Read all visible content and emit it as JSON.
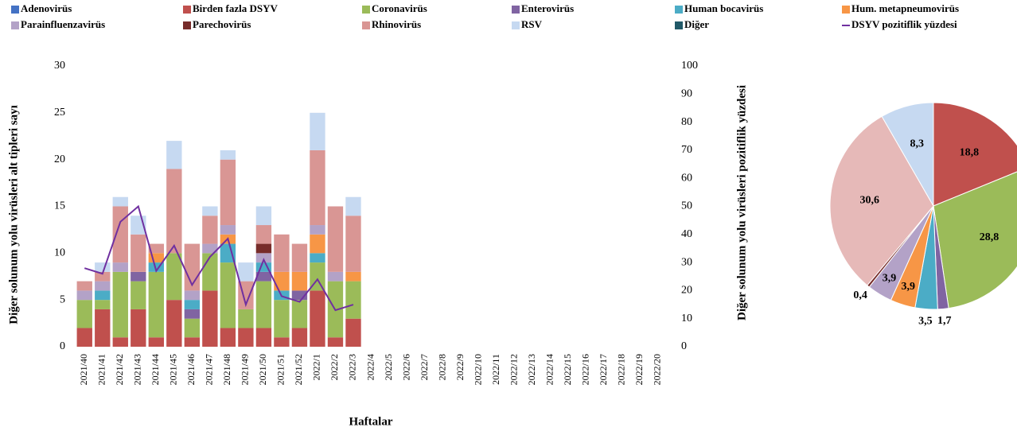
{
  "chart_data": [
    {
      "type": "bar",
      "stacked": true,
      "x_label": "Haftalar",
      "y_label": "Diğer solunum yolu virüsleri alt tipleri sayı",
      "y2_label": "Diğer solunum yolu virüsleri pozitiflik yüzdesi",
      "categories": [
        "2021/40",
        "2021/41",
        "2021/42",
        "2021/43",
        "2021/44",
        "2021/45",
        "2021/46",
        "2021/47",
        "2021/48",
        "2021/49",
        "2021/50",
        "2021/51",
        "2021/52",
        "2022/1",
        "2022/2",
        "2022/3",
        "2022/4",
        "2022/5",
        "2022/6",
        "2022/7",
        "2022/8",
        "2022/9",
        "2022/10",
        "2022/11",
        "2022/12",
        "2022/13",
        "2022/14",
        "2022/15",
        "2022/16",
        "2022/17",
        "2022/18",
        "2022/19",
        "2022/20"
      ],
      "ylim": [
        0,
        30
      ],
      "yticks": [
        0,
        5,
        10,
        15,
        20,
        25,
        30
      ],
      "y2lim": [
        0,
        100
      ],
      "y2ticks": [
        0,
        10,
        20,
        30,
        40,
        50,
        60,
        70,
        80,
        90,
        100
      ],
      "series": [
        {
          "name": "Adenovirüs",
          "color": "#4472c4",
          "values": [
            null,
            null,
            null,
            null,
            null,
            null,
            null,
            null,
            null,
            null,
            null,
            null,
            null,
            null,
            null,
            null,
            null,
            null,
            null,
            null,
            null,
            null,
            null,
            null,
            null,
            null,
            null,
            null,
            null,
            null,
            null,
            null,
            null
          ]
        },
        {
          "name": "Birden fazla DSYV",
          "color": "#c0504d",
          "values": [
            2,
            4,
            1,
            4,
            1,
            5,
            1,
            6,
            2,
            2,
            2,
            1,
            2,
            6,
            1,
            3,
            null,
            null,
            null,
            null,
            null,
            null,
            null,
            null,
            null,
            null,
            null,
            null,
            null,
            null,
            null,
            null,
            null
          ]
        },
        {
          "name": "Coronavirüs",
          "color": "#9bbb59",
          "values": [
            3,
            1,
            7,
            3,
            7,
            5,
            2,
            4,
            7,
            2,
            5,
            4,
            3,
            3,
            6,
            4,
            null,
            null,
            null,
            null,
            null,
            null,
            null,
            null,
            null,
            null,
            null,
            null,
            null,
            null,
            null,
            null,
            null
          ]
        },
        {
          "name": "Enterovirüs",
          "color": "#8064a2",
          "values": [
            null,
            null,
            null,
            1,
            null,
            null,
            1,
            null,
            null,
            null,
            1,
            null,
            1,
            null,
            null,
            null,
            null,
            null,
            null,
            null,
            null,
            null,
            null,
            null,
            null,
            null,
            null,
            null,
            null,
            null,
            null,
            null,
            null
          ]
        },
        {
          "name": "Human bocavirüs",
          "color": "#4bacc6",
          "values": [
            null,
            1,
            null,
            null,
            1,
            null,
            1,
            null,
            2,
            null,
            1,
            1,
            null,
            1,
            null,
            null,
            null,
            null,
            null,
            null,
            null,
            null,
            null,
            null,
            null,
            null,
            null,
            null,
            null,
            null,
            null,
            null,
            null
          ]
        },
        {
          "name": "Hum. metapneumovirüs",
          "color": "#f79646",
          "values": [
            null,
            null,
            null,
            null,
            1,
            null,
            null,
            null,
            1,
            null,
            null,
            2,
            2,
            2,
            null,
            1,
            null,
            null,
            null,
            null,
            null,
            null,
            null,
            null,
            null,
            null,
            null,
            null,
            null,
            null,
            null,
            null,
            null
          ]
        },
        {
          "name": "Parainfluenzavirüs",
          "color": "#b3a2c7",
          "values": [
            1,
            1,
            1,
            null,
            null,
            null,
            1,
            1,
            1,
            null,
            1,
            null,
            null,
            1,
            1,
            null,
            null,
            null,
            null,
            null,
            null,
            null,
            null,
            null,
            null,
            null,
            null,
            null,
            null,
            null,
            null,
            null,
            null
          ]
        },
        {
          "name": "Parechovirüs",
          "color": "#772c2a",
          "values": [
            null,
            null,
            null,
            null,
            null,
            null,
            null,
            null,
            null,
            null,
            1,
            null,
            null,
            null,
            null,
            null,
            null,
            null,
            null,
            null,
            null,
            null,
            null,
            null,
            null,
            null,
            null,
            null,
            null,
            null,
            null,
            null,
            null
          ]
        },
        {
          "name": "Rhinovirüs",
          "color": "#d99694",
          "values": [
            1,
            1,
            6,
            4,
            1,
            9,
            5,
            3,
            7,
            3,
            2,
            4,
            3,
            8,
            7,
            6,
            null,
            null,
            null,
            null,
            null,
            null,
            null,
            null,
            null,
            null,
            null,
            null,
            null,
            null,
            null,
            null,
            null
          ]
        },
        {
          "name": "RSV",
          "color": "#c6d9f1",
          "values": [
            null,
            1,
            1,
            2,
            null,
            3,
            null,
            1,
            1,
            2,
            2,
            null,
            null,
            4,
            null,
            2,
            null,
            null,
            null,
            null,
            null,
            null,
            null,
            null,
            null,
            null,
            null,
            null,
            null,
            null,
            null,
            null,
            null
          ]
        },
        {
          "name": "Diğer",
          "color": "#215968",
          "values": [
            null,
            null,
            null,
            null,
            null,
            null,
            null,
            null,
            null,
            null,
            null,
            null,
            null,
            null,
            null,
            null,
            null,
            null,
            null,
            null,
            null,
            null,
            null,
            null,
            null,
            null,
            null,
            null,
            null,
            null,
            null,
            null,
            null
          ]
        },
        {
          "name": "DSYV pozitiflik yüzdesi",
          "type": "line",
          "axis": "y2",
          "color": "#7030a0",
          "values": [
            28,
            26,
            44.5,
            50,
            27,
            36,
            22,
            32,
            38.5,
            15,
            31,
            18,
            16,
            24,
            13,
            15,
            null,
            null,
            null,
            null,
            null,
            null,
            null,
            null,
            null,
            null,
            null,
            null,
            null,
            null,
            null,
            null,
            null
          ]
        }
      ]
    },
    {
      "type": "pie",
      "values": [
        18.8,
        28.8,
        1.7,
        3.5,
        3.9,
        3.9,
        0.4,
        30.6,
        8.3
      ],
      "value_labels": [
        "18,8",
        "28,8",
        "1,7",
        "3,5",
        "3,9",
        "3,9",
        "0,4",
        "30,6",
        "8,3"
      ],
      "colors": [
        "#c0504d",
        "#9bbb59",
        "#8064a2",
        "#4bacc6",
        "#f79646",
        "#b3a2c7",
        "#772c2a",
        "#e6b9b8",
        "#c6d9f1"
      ]
    }
  ]
}
